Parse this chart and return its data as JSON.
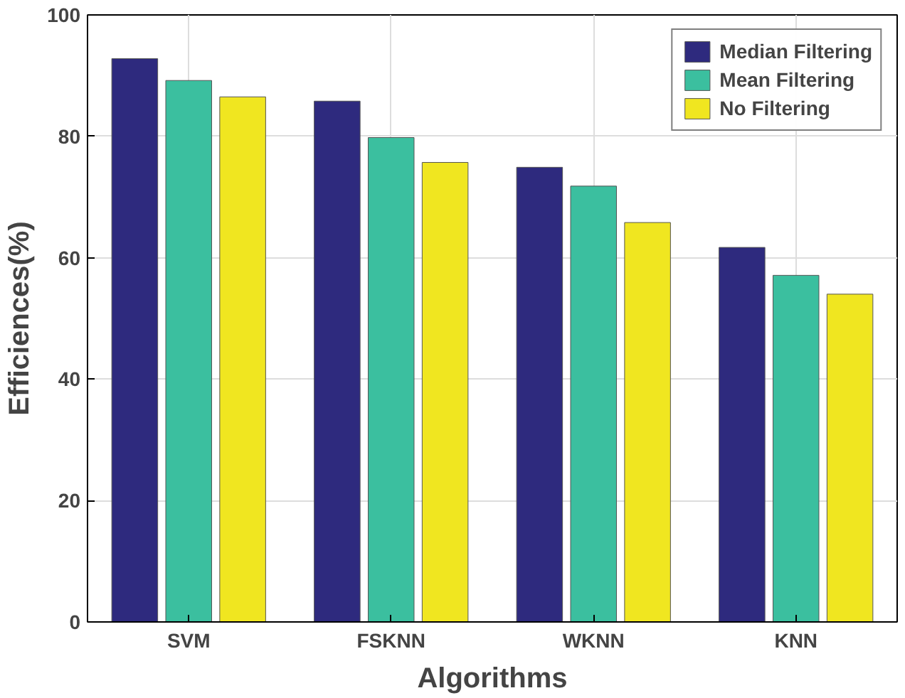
{
  "chart_data": {
    "type": "bar",
    "xlabel": "Algorithms",
    "ylabel": "Efficiences(%)",
    "categories": [
      "SVM",
      "FSKNN",
      "WKNN",
      "KNN"
    ],
    "series": [
      {
        "name": "Median Filtering",
        "color": "#2e2a7e",
        "values": [
          92.8,
          85.8,
          74.9,
          61.7
        ]
      },
      {
        "name": "Mean Filtering",
        "color": "#3bbf9f",
        "values": [
          89.2,
          79.8,
          71.8,
          57.1
        ]
      },
      {
        "name": "No Filtering",
        "color": "#f0e620",
        "values": [
          86.5,
          75.7,
          65.8,
          54.0
        ]
      }
    ],
    "ylim": [
      0,
      100
    ],
    "yticks": [
      0,
      20,
      40,
      60,
      80,
      100
    ],
    "grid": true,
    "legend": "top right"
  }
}
